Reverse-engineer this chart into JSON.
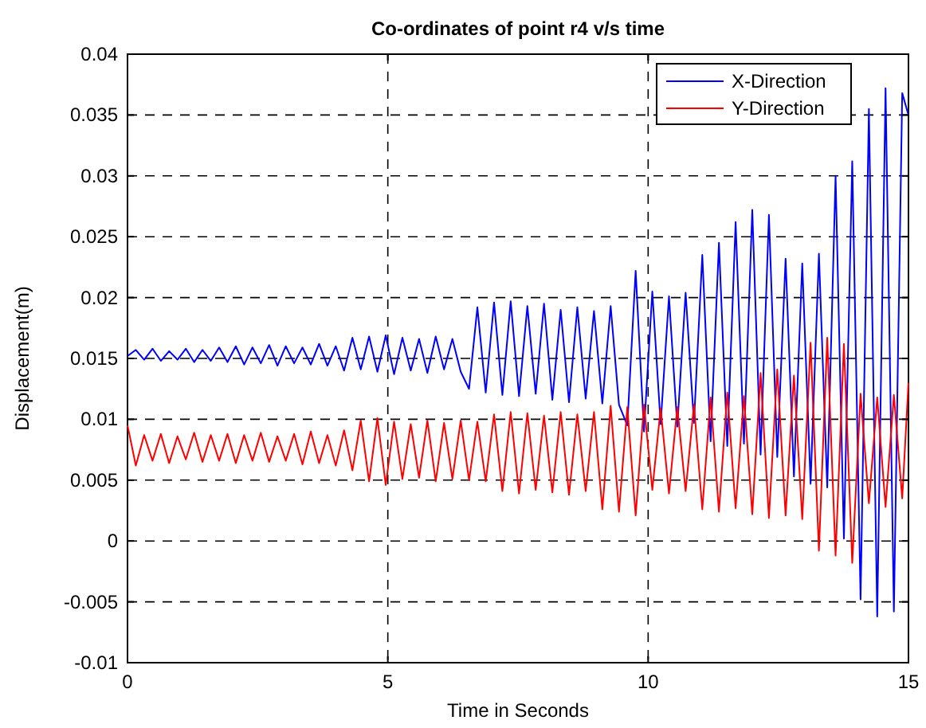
{
  "chart_data": {
    "type": "line",
    "title": "Co-ordinates of point r4 v/s time",
    "xlabel": "Time in Seconds",
    "ylabel": "Displacement(m)",
    "x": [
      0,
      0.16,
      0.32,
      0.48,
      0.64,
      0.8,
      0.96,
      1.12,
      1.28,
      1.44,
      1.6,
      1.76,
      1.92,
      2.08,
      2.24,
      2.4,
      2.56,
      2.72,
      2.88,
      3.04,
      3.2,
      3.36,
      3.52,
      3.68,
      3.84,
      4,
      4.16,
      4.32,
      4.48,
      4.64,
      4.8,
      4.96,
      5.12,
      5.28,
      5.44,
      5.6,
      5.76,
      5.92,
      6.08,
      6.24,
      6.4,
      6.56,
      6.72,
      6.88,
      7.04,
      7.2,
      7.36,
      7.52,
      7.68,
      7.84,
      8,
      8.16,
      8.32,
      8.48,
      8.64,
      8.8,
      8.96,
      9.12,
      9.28,
      9.44,
      9.6,
      9.76,
      9.92,
      10.08,
      10.24,
      10.4,
      10.56,
      10.72,
      10.88,
      11.04,
      11.2,
      11.36,
      11.52,
      11.68,
      11.84,
      12,
      12.16,
      12.32,
      12.48,
      12.64,
      12.8,
      12.96,
      13.12,
      13.28,
      13.44,
      13.6,
      13.76,
      13.92,
      14.08,
      14.24,
      14.4,
      14.56,
      14.72,
      14.88,
      15
    ],
    "series": [
      {
        "name": "X-Direction",
        "color": "#0000ff",
        "values": [
          0.0152,
          0.0157,
          0.0149,
          0.0158,
          0.0148,
          0.0156,
          0.0149,
          0.0158,
          0.0147,
          0.0157,
          0.0148,
          0.0159,
          0.0147,
          0.016,
          0.0145,
          0.0159,
          0.0146,
          0.0161,
          0.0144,
          0.016,
          0.0146,
          0.0159,
          0.0145,
          0.0162,
          0.0144,
          0.016,
          0.014,
          0.0167,
          0.0141,
          0.0168,
          0.0139,
          0.0169,
          0.0137,
          0.0167,
          0.014,
          0.0166,
          0.0138,
          0.0168,
          0.0141,
          0.0166,
          0.0139,
          0.0125,
          0.0192,
          0.0122,
          0.0196,
          0.012,
          0.0197,
          0.0119,
          0.0193,
          0.0121,
          0.0195,
          0.0116,
          0.019,
          0.0114,
          0.0192,
          0.0117,
          0.0189,
          0.0113,
          0.0193,
          0.0112,
          0.0095,
          0.0222,
          0.009,
          0.0205,
          0.0096,
          0.0201,
          0.0094,
          0.0204,
          0.0097,
          0.0235,
          0.0082,
          0.0245,
          0.0078,
          0.0262,
          0.008,
          0.0272,
          0.0071,
          0.0268,
          0.0069,
          0.0232,
          0.0053,
          0.0228,
          0.0047,
          0.0236,
          0.0044,
          0.03,
          0.0002,
          0.0312,
          -0.0048,
          0.0355,
          -0.0062,
          0.0372,
          -0.0058,
          0.0368,
          0.035
        ]
      },
      {
        "name": "Y-Direction",
        "color": "#ff0000",
        "values": [
          0.0095,
          0.0062,
          0.0087,
          0.0066,
          0.0088,
          0.0064,
          0.0086,
          0.0067,
          0.0089,
          0.0065,
          0.0087,
          0.0066,
          0.0088,
          0.0064,
          0.0087,
          0.0066,
          0.0089,
          0.0065,
          0.0086,
          0.0066,
          0.0088,
          0.0063,
          0.009,
          0.0064,
          0.0087,
          0.0062,
          0.0091,
          0.0058,
          0.0099,
          0.0049,
          0.0101,
          0.0046,
          0.0098,
          0.0051,
          0.0096,
          0.0052,
          0.0099,
          0.0049,
          0.0097,
          0.0051,
          0.0099,
          0.005,
          0.0098,
          0.0049,
          0.0104,
          0.0041,
          0.0106,
          0.0039,
          0.0105,
          0.0042,
          0.0103,
          0.004,
          0.0106,
          0.0038,
          0.0104,
          0.0041,
          0.0106,
          0.0026,
          0.0111,
          0.0024,
          0.011,
          0.0021,
          0.0112,
          0.0042,
          0.0109,
          0.0039,
          0.011,
          0.0041,
          0.0112,
          0.0026,
          0.0118,
          0.0024,
          0.0122,
          0.0027,
          0.0119,
          0.0022,
          0.0138,
          0.0019,
          0.0141,
          0.0021,
          0.0136,
          0.0018,
          0.0163,
          -0.0008,
          0.0167,
          -0.0012,
          0.0162,
          -0.0018,
          0.0121,
          0.0031,
          0.0118,
          0.0028,
          0.012,
          0.0035,
          0.013
        ]
      }
    ],
    "xlim": [
      0,
      15
    ],
    "xticks": [
      0,
      5,
      10,
      15
    ],
    "ylim": [
      -0.01,
      0.04
    ],
    "yticks": [
      -0.01,
      -0.005,
      0,
      0.005,
      0.01,
      0.015,
      0.02,
      0.025,
      0.03,
      0.035,
      0.04
    ],
    "grid": true,
    "legend": "top right",
    "line_style": "solid",
    "marker": "none"
  }
}
